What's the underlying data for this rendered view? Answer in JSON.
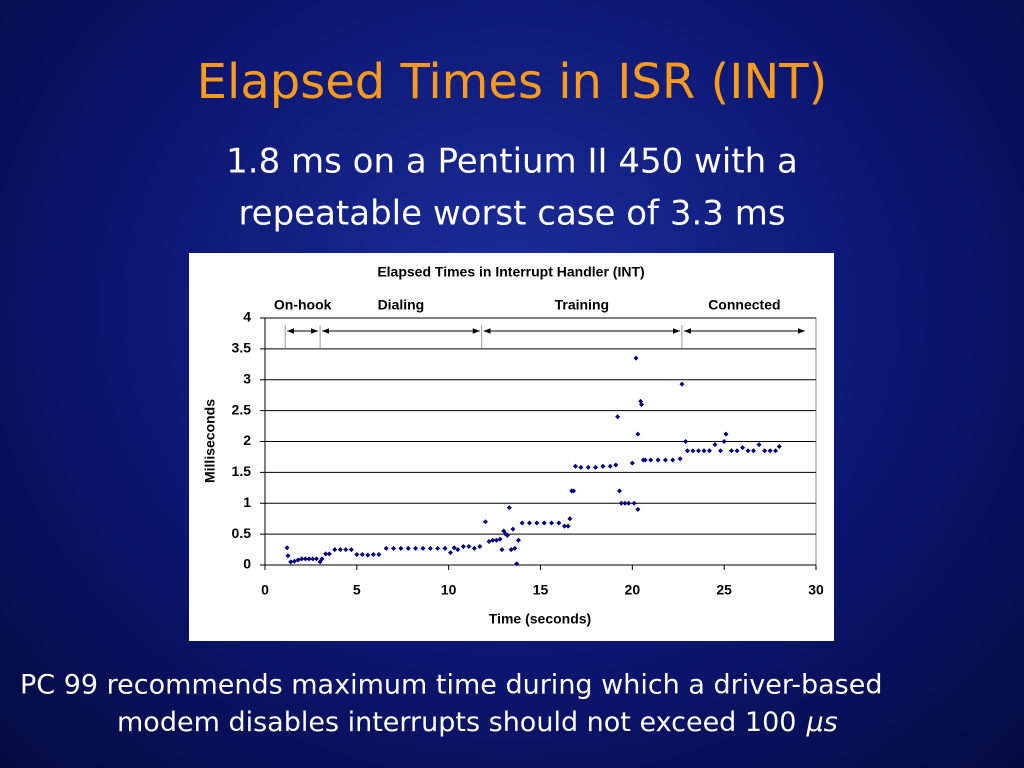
{
  "slide": {
    "title": "Elapsed Times in ISR (INT)",
    "subtitle": [
      "1.8 ms on a Pentium II 450 with a",
      "repeatable worst case of 3.3 ms"
    ],
    "footer": [
      "PC 99 recommends maximum time during which a driver-based",
      "modem disables interrupts should not exceed 100"
    ],
    "footer_unit": "μs"
  },
  "chart_data": {
    "type": "scatter",
    "title": "Elapsed Times in Interrupt Handler (INT)",
    "x_label": "Time (seconds)",
    "y_label": "Milliseconds",
    "color": "#000080",
    "grid": true,
    "xlim": [
      0,
      30
    ],
    "xticks": [
      0,
      5,
      10,
      15,
      20,
      25,
      30
    ],
    "ylim": [
      0,
      4
    ],
    "yticks": [
      0,
      0.5,
      1,
      1.5,
      2,
      2.5,
      3,
      3.5,
      4
    ],
    "phases": [
      {
        "label": "On-hook",
        "start": 1.1,
        "end": 3.0
      },
      {
        "label": "Dialing",
        "start": 3.0,
        "end": 11.8
      },
      {
        "label": "Training",
        "start": 11.8,
        "end": 22.7
      },
      {
        "label": "Connected",
        "start": 22.7,
        "end": 29.5
      }
    ],
    "x": [
      1.2,
      1.25,
      1.4,
      1.6,
      1.8,
      2.0,
      2.2,
      2.4,
      2.6,
      2.8,
      3.0,
      3.1,
      3.3,
      3.5,
      3.8,
      4.1,
      4.4,
      4.7,
      5.0,
      5.3,
      5.6,
      5.9,
      6.2,
      6.6,
      7.0,
      7.4,
      7.8,
      8.2,
      8.6,
      9.0,
      9.4,
      9.8,
      10.1,
      10.3,
      10.5,
      10.8,
      11.1,
      11.4,
      11.7,
      12.0,
      12.2,
      12.4,
      12.6,
      12.8,
      12.9,
      13.0,
      13.1,
      13.2,
      13.3,
      13.4,
      13.5,
      13.6,
      13.7,
      13.8,
      14.0,
      14.4,
      14.8,
      15.2,
      15.6,
      16.0,
      16.3,
      16.5,
      16.6,
      16.7,
      16.8,
      16.9,
      17.2,
      17.6,
      18.0,
      18.4,
      18.8,
      19.1,
      19.2,
      19.3,
      19.4,
      19.6,
      19.8,
      20.0,
      20.1,
      20.2,
      20.3,
      20.3,
      20.45,
      20.5,
      20.6,
      20.7,
      21.0,
      21.4,
      21.8,
      22.2,
      22.6,
      22.7,
      22.9,
      23.0,
      23.3,
      23.6,
      23.9,
      24.2,
      24.5,
      24.8,
      25.0,
      25.1,
      25.4,
      25.7,
      26.0,
      26.3,
      26.6,
      26.9,
      27.2,
      27.5,
      27.8,
      28.0
    ],
    "values": [
      0.28,
      0.15,
      0.05,
      0.06,
      0.08,
      0.1,
      0.1,
      0.1,
      0.1,
      0.1,
      0.05,
      0.1,
      0.18,
      0.18,
      0.25,
      0.25,
      0.25,
      0.25,
      0.17,
      0.17,
      0.16,
      0.17,
      0.17,
      0.27,
      0.27,
      0.27,
      0.27,
      0.27,
      0.27,
      0.27,
      0.27,
      0.27,
      0.2,
      0.28,
      0.25,
      0.3,
      0.3,
      0.27,
      0.3,
      0.7,
      0.38,
      0.4,
      0.4,
      0.42,
      0.25,
      0.55,
      0.5,
      0.48,
      0.93,
      0.25,
      0.58,
      0.27,
      0.02,
      0.4,
      0.68,
      0.68,
      0.68,
      0.68,
      0.68,
      0.68,
      0.63,
      0.63,
      0.75,
      1.2,
      1.2,
      1.6,
      1.58,
      1.58,
      1.58,
      1.6,
      1.6,
      1.62,
      2.4,
      1.2,
      1.0,
      1.0,
      1.0,
      1.65,
      1.0,
      3.35,
      0.9,
      2.12,
      2.65,
      2.6,
      1.7,
      1.7,
      1.7,
      1.7,
      1.7,
      1.7,
      1.72,
      2.93,
      2.0,
      1.85,
      1.85,
      1.85,
      1.85,
      1.85,
      1.95,
      1.85,
      2.0,
      2.12,
      1.85,
      1.85,
      1.9,
      1.85,
      1.85,
      1.95,
      1.85,
      1.85,
      1.85,
      1.92
    ]
  }
}
